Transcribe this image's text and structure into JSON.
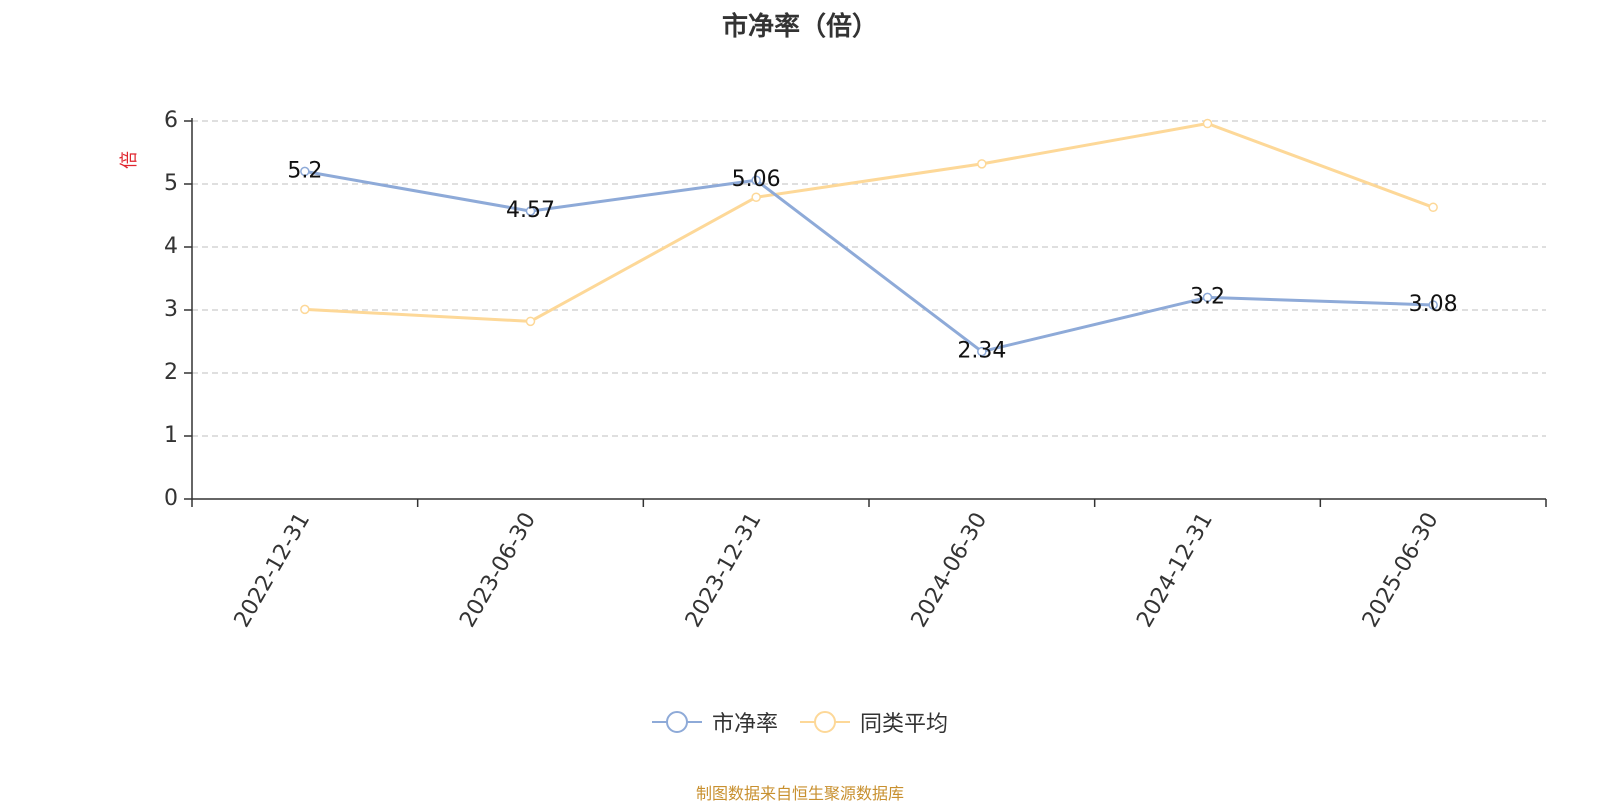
{
  "chart_data": {
    "type": "line",
    "title": "市净率（倍）",
    "ylabel": "倍",
    "xlabel": "",
    "categories": [
      "2022-12-31",
      "2023-06-30",
      "2023-12-31",
      "2024-06-30",
      "2024-12-31",
      "2025-06-30"
    ],
    "ylim": [
      0,
      6
    ],
    "yticks": [
      0,
      1,
      2,
      3,
      4,
      5,
      6
    ],
    "grid": true,
    "legend_position": "bottom",
    "series": [
      {
        "name": "市净率",
        "values": [
          5.2,
          4.57,
          5.06,
          2.34,
          3.2,
          3.08
        ],
        "color": "#8eaad8",
        "labels": [
          "5.2",
          "4.57",
          "5.06",
          "2.34",
          "3.2",
          "3.08"
        ]
      },
      {
        "name": "同类平均",
        "values": [
          3.01,
          2.82,
          4.79,
          5.32,
          5.96,
          4.63
        ],
        "color": "#fdd898"
      }
    ]
  },
  "source_note": "制图数据来自恒生聚源数据库",
  "colors": {
    "ylabel": "#e0262f",
    "source_note": "#c8902f",
    "axis": "#333333",
    "grid": "#cccccc"
  }
}
